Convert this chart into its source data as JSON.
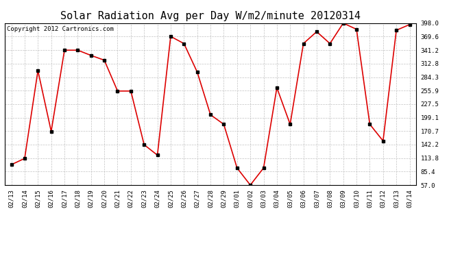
{
  "title": "Solar Radiation Avg per Day W/m2/minute 20120314",
  "copyright": "Copyright 2012 Cartronics.com",
  "labels": [
    "02/13",
    "02/14",
    "02/15",
    "02/16",
    "02/17",
    "02/18",
    "02/19",
    "02/20",
    "02/21",
    "02/22",
    "02/23",
    "02/24",
    "02/25",
    "02/26",
    "02/27",
    "02/28",
    "02/29",
    "03/01",
    "03/02",
    "03/03",
    "03/04",
    "03/05",
    "03/06",
    "03/07",
    "03/08",
    "03/09",
    "03/10",
    "03/11",
    "03/12",
    "03/13",
    "03/14"
  ],
  "values": [
    100,
    113,
    298,
    170,
    341,
    341,
    330,
    320,
    255,
    255,
    142,
    120,
    370,
    355,
    295,
    205,
    185,
    93,
    57,
    93,
    262,
    185,
    355,
    380,
    355,
    398,
    385,
    185,
    150,
    383,
    395
  ],
  "line_color": "#dd0000",
  "marker_color": "#000000",
  "bg_color": "#ffffff",
  "grid_color": "#bbbbbb",
  "yticks": [
    57.0,
    85.4,
    113.8,
    142.2,
    170.7,
    199.1,
    227.5,
    255.9,
    284.3,
    312.8,
    341.2,
    369.6,
    398.0
  ],
  "ylim": [
    57.0,
    398.0
  ],
  "title_fontsize": 11,
  "tick_fontsize": 6.5,
  "copyright_fontsize": 6.5
}
